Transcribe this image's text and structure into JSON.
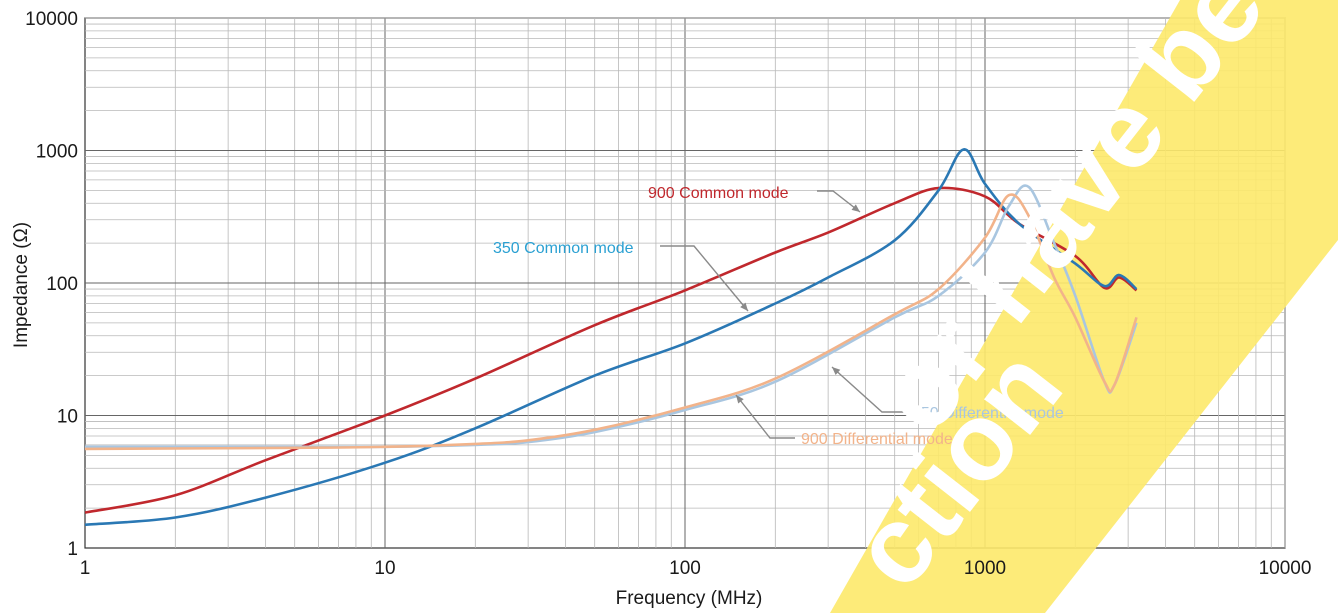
{
  "chart_data": {
    "type": "line",
    "xscale": "log",
    "yscale": "log",
    "xlabel": "Frequency (MHz)",
    "ylabel": "Impedance (Ω)",
    "xlim": [
      1,
      10000
    ],
    "ylim": [
      1,
      10000
    ],
    "grid": true,
    "x_tick_labels": [
      "1",
      "10",
      "100",
      "1000",
      "10000"
    ],
    "y_tick_labels": [
      "1",
      "10",
      "100",
      "1000",
      "10000"
    ],
    "series": [
      {
        "name": "900 Common mode",
        "color": "#c0282d",
        "x": [
          1,
          2,
          4,
          10,
          20,
          50,
          100,
          200,
          300,
          500,
          700,
          1000,
          1300,
          2000,
          2500,
          2800,
          3200
        ],
        "y": [
          1.85,
          2.5,
          4.6,
          10,
          19,
          48,
          88,
          170,
          240,
          400,
          520,
          450,
          280,
          160,
          92,
          110,
          88
        ]
      },
      {
        "name": "350 Common mode",
        "color": "#2a78b4",
        "x": [
          1,
          2,
          4,
          10,
          20,
          50,
          100,
          200,
          300,
          500,
          700,
          850,
          1000,
          1300,
          2000,
          2500,
          2800,
          3200
        ],
        "y": [
          1.5,
          1.7,
          2.4,
          4.4,
          8,
          20,
          35,
          70,
          110,
          210,
          500,
          1020,
          560,
          280,
          140,
          95,
          115,
          90
        ]
      },
      {
        "name": "350 Differential mode",
        "color": "#a9c6e0",
        "x": [
          1,
          5,
          10,
          20,
          30,
          50,
          100,
          200,
          500,
          700,
          1000,
          1200,
          1400,
          1700,
          2000,
          2500,
          2700,
          3200
        ],
        "y": [
          5.8,
          5.8,
          5.8,
          6,
          6.3,
          7.5,
          11,
          18,
          55,
          80,
          170,
          380,
          530,
          200,
          80,
          18,
          17,
          50
        ]
      },
      {
        "name": "900 Differential mode",
        "color": "#f2b38a",
        "x": [
          1,
          5,
          10,
          20,
          30,
          50,
          100,
          200,
          500,
          700,
          1000,
          1200,
          1400,
          1700,
          2000,
          2500,
          2700,
          3200
        ],
        "y": [
          5.6,
          5.7,
          5.8,
          6.1,
          6.5,
          7.8,
          11.5,
          19,
          58,
          90,
          220,
          460,
          320,
          110,
          55,
          18,
          17,
          55
        ]
      }
    ],
    "annotations": [
      {
        "text": "900 Common mode",
        "color": "#c0282d"
      },
      {
        "text": "350 Common mode",
        "color": "#2aa0d2"
      },
      {
        "text": "350 Differential mode",
        "color": "#a9c6e0"
      },
      {
        "text": "900 Differential mode",
        "color": "#f2b38a"
      }
    ],
    "watermark": {
      "color": "#fde96a",
      "lines": [
        "or have been",
        "ction"
      ]
    }
  }
}
